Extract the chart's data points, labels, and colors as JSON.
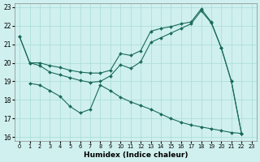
{
  "xlabel": "Humidex (Indice chaleur)",
  "xlim": [
    -0.5,
    23.5
  ],
  "ylim": [
    15.8,
    23.2
  ],
  "yticks": [
    16,
    17,
    18,
    19,
    20,
    21,
    22,
    23
  ],
  "xticks": [
    0,
    1,
    2,
    3,
    4,
    5,
    6,
    7,
    8,
    9,
    10,
    11,
    12,
    13,
    14,
    15,
    16,
    17,
    18,
    19,
    20,
    21,
    22,
    23
  ],
  "bg_color": "#cff0ee",
  "line_color": "#1a6b5a",
  "grid_color": "#a8dbd8",
  "series": [
    {
      "x": [
        0,
        1,
        2,
        3,
        4,
        5,
        6,
        7,
        8,
        9,
        10,
        11,
        12,
        13,
        14,
        15,
        16,
        17,
        18,
        19,
        20,
        21,
        22
      ],
      "y": [
        21.4,
        20.0,
        20.0,
        19.85,
        19.75,
        19.6,
        19.5,
        19.45,
        19.45,
        19.6,
        20.5,
        20.4,
        20.65,
        21.7,
        21.85,
        21.95,
        22.1,
        22.2,
        22.9,
        22.2,
        20.8,
        19.0,
        16.2
      ]
    },
    {
      "x": [
        0,
        1,
        2,
        3,
        4,
        5,
        6,
        7,
        8,
        9,
        10,
        11,
        12,
        13,
        14,
        15,
        16,
        17,
        18,
        19,
        20,
        21,
        22
      ],
      "y": [
        21.4,
        20.0,
        19.85,
        19.5,
        19.35,
        19.2,
        19.05,
        18.95,
        19.0,
        19.3,
        19.9,
        19.7,
        20.05,
        21.1,
        21.35,
        21.6,
        21.85,
        22.1,
        22.8,
        22.15,
        20.8,
        19.0,
        16.2
      ]
    },
    {
      "x": [
        1,
        2,
        3,
        4,
        5,
        6,
        7,
        8,
        9,
        10,
        11,
        12,
        13,
        14,
        15,
        16,
        17,
        18,
        19,
        20,
        21,
        22
      ],
      "y": [
        18.9,
        18.8,
        18.5,
        18.2,
        17.65,
        17.3,
        17.5,
        18.8,
        18.5,
        18.15,
        17.9,
        17.7,
        17.5,
        17.25,
        17.0,
        16.8,
        16.65,
        16.55,
        16.45,
        16.35,
        16.25,
        16.2
      ]
    }
  ]
}
